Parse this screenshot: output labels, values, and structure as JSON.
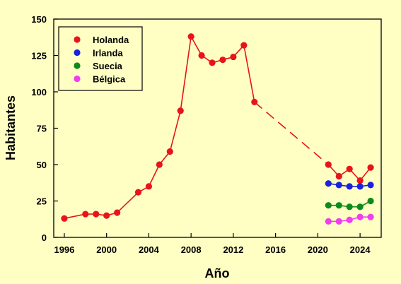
{
  "chart_data": {
    "type": "line",
    "xlabel": "Año",
    "ylabel": "Habitantes",
    "xlim": [
      1995,
      2026
    ],
    "ylim": [
      0,
      150
    ],
    "x_ticks": [
      1996,
      2000,
      2004,
      2008,
      2012,
      2016,
      2020,
      2024
    ],
    "y_ticks": [
      0,
      25,
      50,
      75,
      100,
      125,
      150
    ],
    "grid": false,
    "legend_position": "top-left",
    "series": [
      {
        "name": "Holanda",
        "color": "#e8141a",
        "x": [
          1996,
          1998,
          1999,
          2000,
          2001,
          2003,
          2004,
          2005,
          2006,
          2007,
          2008,
          2009,
          2010,
          2011,
          2012,
          2013,
          2014,
          2021,
          2022,
          2023,
          2024,
          2025
        ],
        "y": [
          13,
          16,
          16,
          15,
          17,
          31,
          35,
          50,
          59,
          87,
          138,
          125,
          120,
          122,
          124,
          132,
          93,
          50,
          42,
          47,
          39,
          48
        ],
        "dashed_gap": [
          2014,
          2021
        ]
      },
      {
        "name": "Irlanda",
        "color": "#1a22e0",
        "x": [
          2021,
          2022,
          2023,
          2024,
          2025
        ],
        "y": [
          37,
          36,
          35,
          35,
          36
        ]
      },
      {
        "name": "Suecia",
        "color": "#0d8a1c",
        "x": [
          2021,
          2022,
          2023,
          2024,
          2025
        ],
        "y": [
          22,
          22,
          21,
          21,
          25
        ]
      },
      {
        "name": "Bélgica",
        "color": "#f23cf2",
        "x": [
          2021,
          2022,
          2023,
          2024,
          2025
        ],
        "y": [
          11,
          11,
          12,
          14,
          14
        ]
      }
    ]
  }
}
